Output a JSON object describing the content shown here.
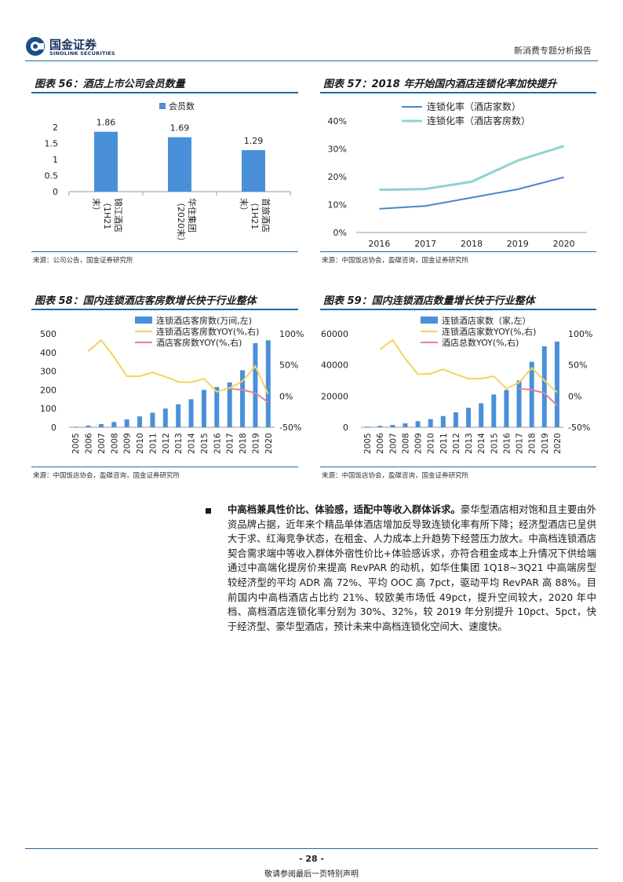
{
  "header": {
    "logo_cn": "国金证券",
    "logo_en": "SINOLINK SECURITIES",
    "report_type": "新消费专题分析报告"
  },
  "fig56": {
    "title": "图表 56：酒店上市公司会员数量",
    "source": "来源：公司公告，国金证券研究所",
    "chart_data": {
      "type": "bar",
      "categories": [
        "锦江酒店（1H21末）",
        "华住集团（2020末）",
        "首旅酒店（1H21末）"
      ],
      "category_lines": [
        [
          "锦江酒店",
          "（1H21",
          "末）"
        ],
        [
          "华住集团",
          "（2020末）"
        ],
        [
          "首旅酒店",
          "（1H21",
          "末）"
        ]
      ],
      "series": [
        {
          "name": "会员数",
          "values": [
            1.86,
            1.69,
            1.29
          ]
        }
      ],
      "data_labels": [
        "1.86",
        "1.69",
        "1.29"
      ],
      "yticks": [
        "0",
        "0.5",
        "1",
        "1.5",
        "2"
      ],
      "ylim": [
        0,
        2
      ],
      "legend": "top-center",
      "color": "#4a90d9"
    }
  },
  "fig57": {
    "title": "图表 57：2018 年开始国内酒店连锁化率加快提升",
    "source": "来源：中国饭店协会，盈碟咨询，国金证券研究所",
    "chart_data": {
      "type": "line",
      "x": [
        "2016",
        "2017",
        "2018",
        "2019",
        "2020"
      ],
      "series": [
        {
          "name": "连锁化率（酒店家数）",
          "values": [
            8.5,
            9.5,
            12.5,
            15.5,
            19.8
          ],
          "color": "#4a86c8"
        },
        {
          "name": "连锁化率（酒店客房数）",
          "values": [
            15.3,
            15.6,
            18.2,
            25.8,
            31.0
          ],
          "color": "#8fd3d0"
        }
      ],
      "yticks": [
        "0%",
        "10%",
        "20%",
        "30%",
        "40%"
      ],
      "ylim": [
        0,
        40
      ],
      "legend": "top-left"
    }
  },
  "fig58": {
    "title": "图表 58：国内连锁酒店客房数增长快于行业整体",
    "source": "来源：中国饭店协会，盈碟咨询，国金证券研究所",
    "chart_data": {
      "type": "bar",
      "categories": [
        "2005",
        "2006",
        "2007",
        "2008",
        "2009",
        "2010",
        "2011",
        "2012",
        "2013",
        "2014",
        "2015",
        "2016",
        "2017",
        "2018",
        "2019",
        "2020"
      ],
      "series": [
        {
          "name": "连锁酒店客房数(万间,左)",
          "type": "bar",
          "axis": "left",
          "values": [
            3,
            9,
            17,
            28,
            42,
            58,
            78,
            100,
            123,
            150,
            200,
            215,
            240,
            305,
            450,
            465
          ],
          "color": "#4a90d9"
        },
        {
          "name": "连锁酒店客房数YOY(%,右)",
          "type": "line",
          "axis": "right",
          "values": [
            null,
            72,
            90,
            63,
            32,
            32,
            38,
            31,
            23,
            22,
            28,
            7,
            13,
            24,
            48,
            3
          ],
          "color": "#f2d45c"
        },
        {
          "name": "酒店客房数YOY(%,右)",
          "type": "line",
          "axis": "right",
          "values": [
            null,
            null,
            null,
            null,
            null,
            null,
            null,
            null,
            null,
            null,
            null,
            null,
            12,
            10,
            5,
            -10
          ],
          "color": "#e8818a"
        }
      ],
      "yticks_left": [
        "0",
        "100",
        "200",
        "300",
        "400",
        "500"
      ],
      "ylim_left": [
        0,
        500
      ],
      "yticks_right": [
        "-50%",
        "0%",
        "50%",
        "100%"
      ],
      "ylim_right": [
        -50,
        100
      ],
      "legend": "top-center"
    }
  },
  "fig59": {
    "title": "图表 59：国内连锁酒店数量增长快于行业整体",
    "source": "来源：中国饭店协会，盈碟咨询，国金证券研究所",
    "chart_data": {
      "type": "bar",
      "categories": [
        "2005",
        "2006",
        "2007",
        "2008",
        "2009",
        "2010",
        "2011",
        "2012",
        "2013",
        "2014",
        "2015",
        "2016",
        "2017",
        "2018",
        "2019",
        "2020"
      ],
      "series": [
        {
          "name": "连锁酒店家数（家,左）",
          "type": "bar",
          "axis": "left",
          "values": [
            400,
            900,
            1500,
            2500,
            3900,
            5200,
            7200,
            9600,
            12500,
            15400,
            21000,
            24000,
            30000,
            42000,
            52000,
            55000
          ],
          "color": "#4a90d9"
        },
        {
          "name": "连锁酒店家数YOY(%,右)",
          "type": "line",
          "axis": "right",
          "values": [
            null,
            75,
            90,
            60,
            35,
            36,
            43,
            35,
            28,
            28,
            32,
            12,
            22,
            45,
            25,
            6
          ],
          "color": "#f2d45c"
        },
        {
          "name": "酒店总数YOY(%,右)",
          "type": "line",
          "axis": "right",
          "values": [
            null,
            null,
            null,
            null,
            null,
            null,
            null,
            null,
            null,
            null,
            null,
            null,
            12,
            10,
            5,
            -15
          ],
          "color": "#e8818a"
        }
      ],
      "yticks_left": [
        "0",
        "20000",
        "40000",
        "60000"
      ],
      "ylim_left": [
        0,
        60000
      ],
      "yticks_right": [
        "-50%",
        "0%",
        "50%",
        "100%"
      ],
      "ylim_right": [
        -50,
        100
      ],
      "legend": "top-center"
    }
  },
  "body": {
    "bold_lead": "中高档兼具性价比、体验感，适配中等收入群体诉求。",
    "text": "豪华型酒店相对饱和且主要由外资品牌占据，近年来个精品单体酒店增加反导致连锁化率有所下降；经济型酒店已呈供大于求、红海竞争状态，在租金、人力成本上升趋势下经营压力放大。中高档连锁酒店契合需求端中等收入群体外宿性价比+体验感诉求，亦符合租金成本上升情况下供给端通过中高端化提房价来提高 RevPAR 的动机，如华住集团 1Q18~3Q21 中高端房型较经济型的平均 ADR 高 72%、平均 OOC 高 7pct，驱动平均 RevPAR 高 88%。目前国内中高档酒店占比约 21%、较欧美市场低 49pct，提升空间较大，2020 年中档、高档酒店连锁化率分别为 30%、32%，较 2019 年分别提升 10pct、5pct，快于经济型、豪华型酒店，预计未来中高档连锁化空间大、速度快。"
  },
  "footer": {
    "page": "- 28 -",
    "disclaimer": "敬请参阅最后一页特别声明"
  }
}
